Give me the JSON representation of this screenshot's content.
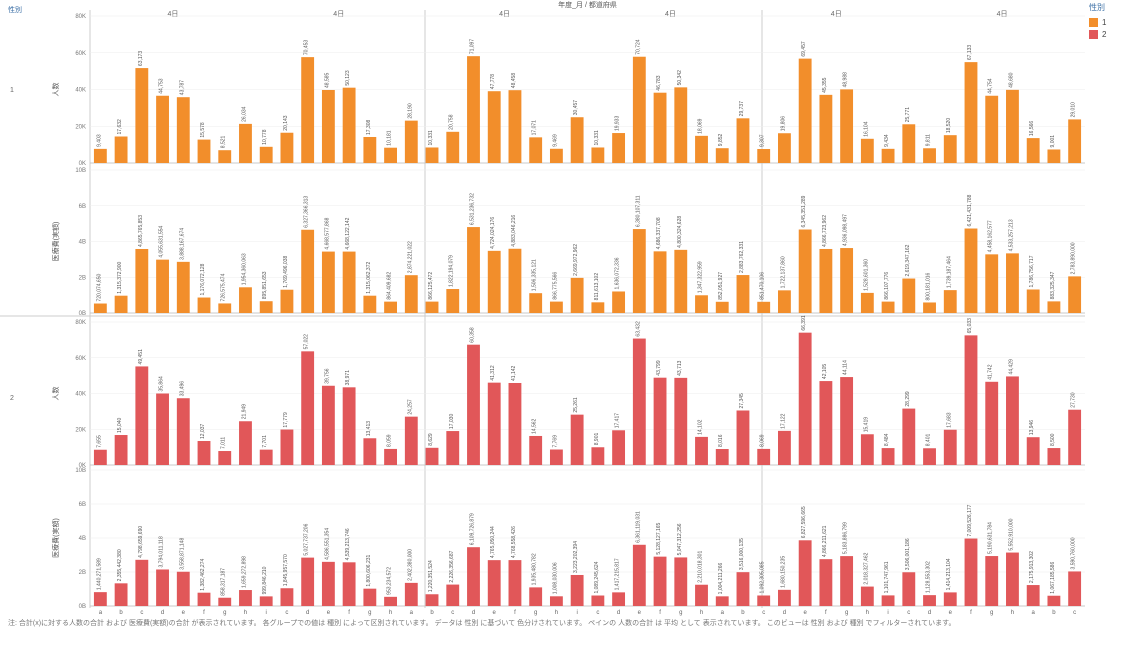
{
  "header": {
    "left_label": "性別",
    "top_title": "年度_月 / 都道府県"
  },
  "legend": {
    "title": "性別",
    "items": [
      {
        "label": "1",
        "color": "#F28E2B"
      },
      {
        "label": "2",
        "color": "#E15759"
      }
    ]
  },
  "footnote": "注: 合計(x)に対する人数の合計 および 医療費(実額)の合計 が表示されています。 各グループでの値は 種別 によって区別されています。 データは 性別 に基づいて 色分けされています。 ペインの 人数の合計 は 平均 として 表示されています。 このビューは 性別 および 種別 でフィルターされています。",
  "chart_data": {
    "type": "bar",
    "columns": [
      "4日",
      "4日",
      "4日",
      "4日",
      "4日",
      "4日"
    ],
    "categories": [
      "a",
      "b",
      "c",
      "d",
      "e",
      "f",
      "g",
      "h",
      "i",
      "c",
      "d",
      "e",
      "f",
      "g",
      "h"
    ],
    "row_groups": [
      "1",
      "2"
    ],
    "measures": [
      "人数",
      "医療費(実額)"
    ],
    "colors": {
      "1": "#F28E2B",
      "2": "#E15759"
    },
    "y_ticks": {
      "人数": [
        "0K",
        "20K",
        "40K",
        "60K",
        "80K"
      ],
      "医療費(実額)": [
        "0B",
        "2B",
        "4B",
        "6B",
        "10B"
      ]
    },
    "panels": [
      {
        "group": "1",
        "measure": "人数",
        "ymax": 90000,
        "values": [
          9403,
          17632,
          63173,
          44753,
          43787,
          15578,
          8521,
          26034,
          10778,
          20143,
          70453,
          48585,
          50123,
          17308,
          10181,
          28190,
          10331,
          20758,
          71097,
          47778,
          48458,
          17071,
          9469,
          30457,
          10331,
          19933,
          70724,
          46783,
          50342,
          18069,
          9852,
          29737,
          9307,
          19806,
          69457,
          45355,
          48988,
          16104,
          9434,
          25771,
          9811,
          18520,
          67133,
          44754,
          48680,
          16566,
          9001,
          29010
        ]
      },
      {
        "group": "1",
        "measure": "医療費(実額)",
        "ymax": 10000000000,
        "values": [
          720074650,
          1315372900,
          4865765853,
          4055631554,
          3888167674,
          1176072128,
          726575474,
          1954360063,
          895851653,
          1769496038,
          6327366313,
          4668577868,
          4668122142,
          1315062372,
          864409682,
          2874221022,
          866125472,
          1822194079,
          6531236732,
          4724024176,
          4883046216,
          1506335121,
          866775566,
          2669972962,
          811613102,
          1636072336,
          6380107311,
          4686337708,
          4800324628,
          1347322959,
          852051927,
          2883762331,
          851470106,
          1722137860,
          6345351289,
          4866723962,
          4936098497,
          1528601360,
          866107776,
          2619347162,
          800181016,
          1739187464,
          6421431788,
          4458162577,
          4533257213,
          1786756717,
          883325347,
          2783890000
        ]
      },
      {
        "group": "2",
        "measure": "人数",
        "ymax": 66000,
        "values": [
          7655,
          15040,
          49451,
          35864,
          33496,
          12037,
          7011,
          21949,
          7701,
          17779,
          57022,
          39756,
          38971,
          13413,
          8059,
          24257,
          8629,
          17030,
          60358,
          41312,
          41142,
          14562,
          7769,
          25261,
          8901,
          17417,
          63432,
          43799,
          43713,
          14102,
          8016,
          27345,
          8069,
          17122,
          66391,
          42105,
          44114,
          15419,
          8484,
          28299,
          8401,
          17683,
          65033,
          41742,
          44429,
          13946,
          8500,
          27730
        ]
      },
      {
        "group": "2",
        "measure": "医療費(実額)",
        "ymax": 13000000000,
        "values": [
          1440271589,
          2355442380,
          4798659690,
          3794011118,
          3558871148,
          1382462274,
          858317187,
          1659272898,
          999846210,
          1845957570,
          5027737206,
          4586551354,
          4539213746,
          1800606231,
          953234572,
          2402380000,
          1220351524,
          2226356687,
          6109726879,
          4765050244,
          4768558426,
          1935480782,
          1008030006,
          3223202394,
          1089245624,
          1417215817,
          6361119031,
          5128127165,
          5047312256,
          2210018301,
          1004211266,
          3516000135,
          1092305085,
          1680150235,
          6827596665,
          4866211621,
          5183886799,
          2018327462,
          1101747961,
          3506001186,
          1128553302,
          1414213104,
          7009526177,
          5190631784,
          5552910000,
          2175913302,
          1067185586,
          3590760000
        ]
      }
    ]
  }
}
